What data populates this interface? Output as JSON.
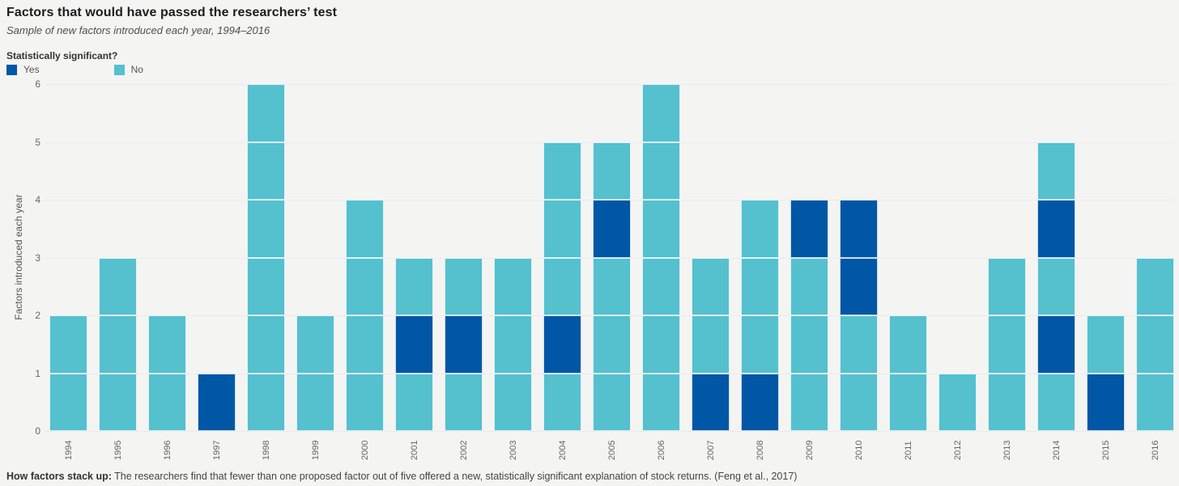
{
  "header": {
    "title": "Factors that would have passed the researchers’ test",
    "subtitle": "Sample of new factors introduced each year, 1994–2016"
  },
  "legend": {
    "title": "Statistically significant?",
    "items": [
      {
        "key": "yes",
        "label": "Yes",
        "color": "#0057a5"
      },
      {
        "key": "no",
        "label": "No",
        "color": "#55c0ce"
      }
    ]
  },
  "footer": {
    "label": "How factors stack up:",
    "text": " The researchers find that fewer than one proposed factor out of five offered a new, statistically significant explanation of stock returns. (Feng et al., 2017)"
  },
  "chart_data": {
    "type": "bar",
    "stacked": true,
    "title": "Factors that would have passed the researchers’ test",
    "subtitle": "Sample of new factors introduced each year, 1994–2016",
    "categories": [
      "1994",
      "1995",
      "1996",
      "1997",
      "1998",
      "1999",
      "2000",
      "2001",
      "2002",
      "2003",
      "2004",
      "2005",
      "2006",
      "2007",
      "2008",
      "2009",
      "2010",
      "2011",
      "2012",
      "2013",
      "2014",
      "2015",
      "2016"
    ],
    "series": [
      {
        "name": "Yes",
        "color": "#0057a5",
        "values": [
          0,
          0,
          0,
          1,
          0,
          0,
          0,
          1,
          1,
          0,
          1,
          1,
          0,
          1,
          1,
          1,
          2,
          0,
          0,
          0,
          2,
          1,
          0
        ]
      },
      {
        "name": "No",
        "color": "#55c0ce",
        "values": [
          2,
          3,
          2,
          0,
          6,
          2,
          4,
          2,
          2,
          3,
          4,
          4,
          6,
          2,
          3,
          3,
          2,
          2,
          1,
          3,
          3,
          1,
          3
        ]
      }
    ],
    "totals": [
      2,
      3,
      2,
      1,
      6,
      2,
      4,
      3,
      3,
      3,
      5,
      5,
      6,
      3,
      4,
      4,
      4,
      2,
      1,
      3,
      5,
      2,
      3
    ],
    "segments_bottom_to_top": [
      [
        "no",
        "no"
      ],
      [
        "no",
        "no",
        "no"
      ],
      [
        "no",
        "no"
      ],
      [
        "yes"
      ],
      [
        "no",
        "no",
        "no",
        "no",
        "no",
        "no"
      ],
      [
        "no",
        "no"
      ],
      [
        "no",
        "no",
        "no",
        "no"
      ],
      [
        "no",
        "yes",
        "no"
      ],
      [
        "no",
        "yes",
        "no"
      ],
      [
        "no",
        "no",
        "no"
      ],
      [
        "no",
        "yes",
        "no",
        "no",
        "no"
      ],
      [
        "no",
        "no",
        "no",
        "yes",
        "no"
      ],
      [
        "no",
        "no",
        "no",
        "no",
        "no",
        "no"
      ],
      [
        "yes",
        "no",
        "no"
      ],
      [
        "yes",
        "no",
        "no",
        "no"
      ],
      [
        "no",
        "no",
        "no",
        "yes"
      ],
      [
        "no",
        "no",
        "yes",
        "yes"
      ],
      [
        "no",
        "no"
      ],
      [
        "no"
      ],
      [
        "no",
        "no",
        "no"
      ],
      [
        "no",
        "yes",
        "no",
        "yes",
        "no"
      ],
      [
        "yes",
        "no"
      ],
      [
        "no",
        "no",
        "no"
      ]
    ],
    "xlabel": "",
    "ylabel": "Factors introduced each year",
    "ylim": [
      0,
      6
    ],
    "yticks": [
      0,
      1,
      2,
      3,
      4,
      5,
      6
    ],
    "grid": true,
    "legend_position": "top-left",
    "background_color": "#f4f4f3"
  }
}
